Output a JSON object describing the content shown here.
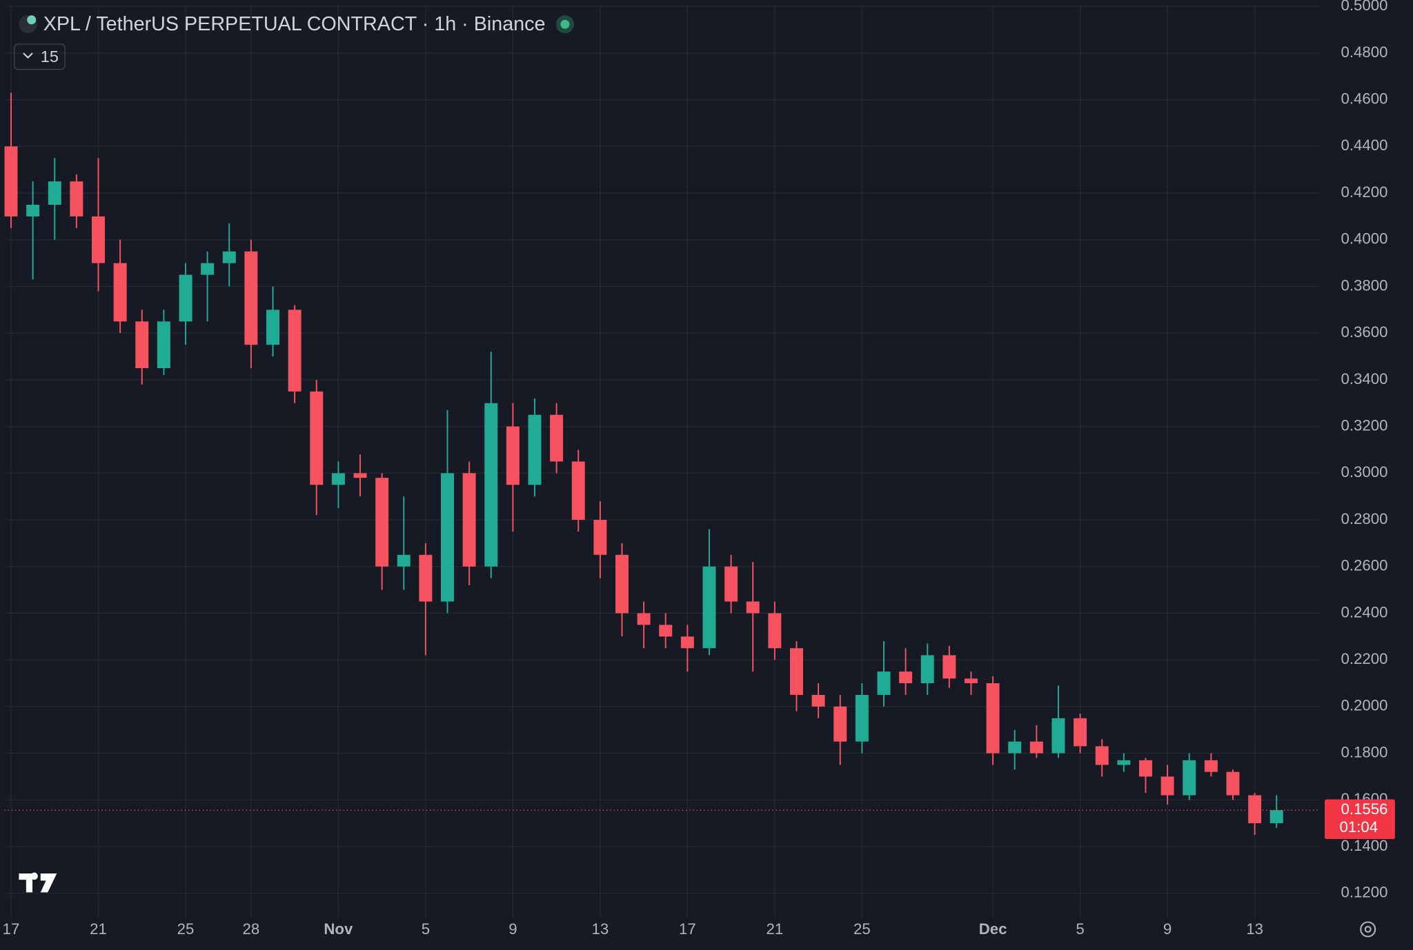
{
  "chart_data": {
    "type": "candlestick",
    "title": "XPL / TetherUS PERPETUAL CONTRACT · 1h · Binance",
    "indicator": "15",
    "countdown": "01:04",
    "price_line": 0.1556,
    "up_color": "#22ab94",
    "down_color": "#f7525f",
    "grid": true,
    "x": [
      0,
      1,
      2,
      3,
      4,
      5,
      6,
      7,
      8,
      9,
      10,
      11,
      12,
      13,
      14,
      15,
      16,
      17,
      18,
      19,
      20,
      21,
      22,
      23,
      24,
      25,
      26,
      27,
      28,
      29,
      30,
      31,
      32,
      33,
      34,
      35,
      36,
      37,
      38,
      39,
      40,
      41,
      42,
      43,
      44,
      45,
      46,
      47,
      48,
      49,
      50,
      51,
      52,
      53,
      54,
      55,
      56,
      57,
      58
    ],
    "open": [
      0.44,
      0.41,
      0.415,
      0.425,
      0.41,
      0.39,
      0.365,
      0.345,
      0.365,
      0.385,
      0.39,
      0.395,
      0.355,
      0.37,
      0.335,
      0.295,
      0.3,
      0.298,
      0.26,
      0.265,
      0.245,
      0.3,
      0.26,
      0.32,
      0.295,
      0.325,
      0.305,
      0.28,
      0.265,
      0.24,
      0.235,
      0.23,
      0.225,
      0.26,
      0.245,
      0.24,
      0.225,
      0.205,
      0.2,
      0.185,
      0.205,
      0.215,
      0.21,
      0.222,
      0.212,
      0.21,
      0.18,
      0.185,
      0.18,
      0.195,
      0.183,
      0.175,
      0.177,
      0.17,
      0.162,
      0.177,
      0.172,
      0.162,
      0.15
    ],
    "high": [
      0.463,
      0.425,
      0.435,
      0.428,
      0.435,
      0.4,
      0.37,
      0.37,
      0.39,
      0.395,
      0.407,
      0.4,
      0.38,
      0.372,
      0.34,
      0.305,
      0.308,
      0.3,
      0.29,
      0.27,
      0.327,
      0.305,
      0.352,
      0.33,
      0.332,
      0.33,
      0.31,
      0.288,
      0.27,
      0.245,
      0.24,
      0.235,
      0.276,
      0.265,
      0.262,
      0.245,
      0.228,
      0.21,
      0.205,
      0.21,
      0.228,
      0.225,
      0.227,
      0.226,
      0.215,
      0.213,
      0.19,
      0.192,
      0.209,
      0.197,
      0.186,
      0.18,
      0.178,
      0.175,
      0.18,
      0.18,
      0.173,
      0.163,
      0.162
    ],
    "low": [
      0.405,
      0.383,
      0.4,
      0.405,
      0.378,
      0.36,
      0.338,
      0.342,
      0.355,
      0.365,
      0.38,
      0.345,
      0.35,
      0.33,
      0.282,
      0.285,
      0.29,
      0.25,
      0.25,
      0.222,
      0.24,
      0.252,
      0.255,
      0.275,
      0.29,
      0.3,
      0.275,
      0.255,
      0.23,
      0.225,
      0.225,
      0.215,
      0.222,
      0.24,
      0.215,
      0.22,
      0.198,
      0.195,
      0.175,
      0.18,
      0.2,
      0.205,
      0.205,
      0.208,
      0.205,
      0.175,
      0.173,
      0.178,
      0.178,
      0.18,
      0.17,
      0.172,
      0.163,
      0.158,
      0.16,
      0.17,
      0.16,
      0.145,
      0.148
    ],
    "close": [
      0.41,
      0.415,
      0.425,
      0.41,
      0.39,
      0.365,
      0.345,
      0.365,
      0.385,
      0.39,
      0.395,
      0.355,
      0.37,
      0.335,
      0.295,
      0.3,
      0.298,
      0.26,
      0.265,
      0.245,
      0.3,
      0.26,
      0.33,
      0.295,
      0.325,
      0.305,
      0.28,
      0.265,
      0.24,
      0.235,
      0.23,
      0.225,
      0.26,
      0.245,
      0.24,
      0.225,
      0.205,
      0.2,
      0.185,
      0.205,
      0.215,
      0.21,
      0.222,
      0.212,
      0.21,
      0.18,
      0.185,
      0.18,
      0.195,
      0.183,
      0.175,
      0.177,
      0.17,
      0.162,
      0.177,
      0.172,
      0.162,
      0.15,
      0.1556
    ],
    "xlim": [
      -0.3,
      60
    ],
    "xticks": [
      {
        "value": 0,
        "label": "17"
      },
      {
        "value": 4,
        "label": "21"
      },
      {
        "value": 8,
        "label": "25"
      },
      {
        "value": 11,
        "label": "28"
      },
      {
        "value": 15,
        "label": "Nov"
      },
      {
        "value": 19,
        "label": "5"
      },
      {
        "value": 23,
        "label": "9"
      },
      {
        "value": 27,
        "label": "13"
      },
      {
        "value": 31,
        "label": "17"
      },
      {
        "value": 35,
        "label": "21"
      },
      {
        "value": 39,
        "label": "25"
      },
      {
        "value": 45,
        "label": "Dec"
      },
      {
        "value": 49,
        "label": "5"
      },
      {
        "value": 53,
        "label": "9"
      },
      {
        "value": 57,
        "label": "13"
      }
    ],
    "ylim": [
      0.1092,
      0.5008
    ],
    "yticks": [
      {
        "value": 0.12,
        "label": "0.1200"
      },
      {
        "value": 0.14,
        "label": "0.1400"
      },
      {
        "value": 0.16,
        "label": "0.1600"
      },
      {
        "value": 0.18,
        "label": "0.1800"
      },
      {
        "value": 0.2,
        "label": "0.2000"
      },
      {
        "value": 0.22,
        "label": "0.2200"
      },
      {
        "value": 0.24,
        "label": "0.2400"
      },
      {
        "value": 0.26,
        "label": "0.2600"
      },
      {
        "value": 0.28,
        "label": "0.2800"
      },
      {
        "value": 0.3,
        "label": "0.3000"
      },
      {
        "value": 0.32,
        "label": "0.3200"
      },
      {
        "value": 0.34,
        "label": "0.3400"
      },
      {
        "value": 0.36,
        "label": "0.3600"
      },
      {
        "value": 0.38,
        "label": "0.3800"
      },
      {
        "value": 0.4,
        "label": "0.4000"
      },
      {
        "value": 0.42,
        "label": "0.4200"
      },
      {
        "value": 0.44,
        "label": "0.4400"
      },
      {
        "value": 0.46,
        "label": "0.4600"
      },
      {
        "value": 0.48,
        "label": "0.4800"
      },
      {
        "value": 0.5,
        "label": "0.5000"
      }
    ]
  }
}
